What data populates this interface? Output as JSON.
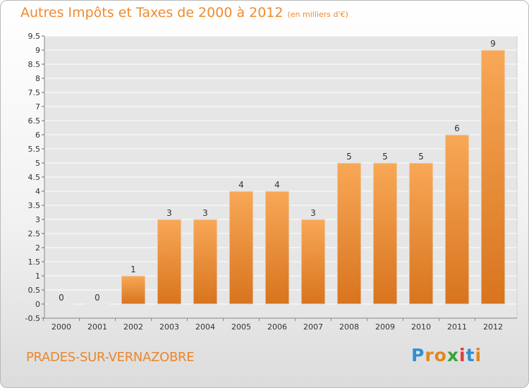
{
  "title": "Autres Impôts et Taxes de 2000 à 2012",
  "unit": "(en milliers d'€)",
  "commune": "PRADES-SUR-VERNAZOBRE",
  "logo": {
    "letters": [
      "P",
      "r",
      "o",
      "x",
      "i",
      "t",
      "i"
    ],
    "colors": [
      "#2f8fd6",
      "#e2861f",
      "#e2861f",
      "#3aa23a",
      "#e23a3a",
      "#2f8fd6",
      "#e2861f"
    ]
  },
  "colors": {
    "bar_top": "#f8a857",
    "bar_bottom": "#d8741e",
    "accent": "#f08a2f",
    "grid": "#ffffff"
  },
  "chart_data": {
    "type": "bar",
    "title": "Autres Impôts et Taxes de 2000 à 2012",
    "subtitle": "(en milliers d'€)",
    "categories": [
      "2000",
      "2001",
      "2002",
      "2003",
      "2004",
      "2005",
      "2006",
      "2007",
      "2008",
      "2009",
      "2010",
      "2011",
      "2012"
    ],
    "values": [
      0,
      0,
      1,
      3,
      3,
      4,
      4,
      3,
      5,
      5,
      5,
      6,
      9
    ],
    "data_labels": [
      "0",
      "0",
      "1",
      "3",
      "3",
      "4",
      "4",
      "3",
      "5",
      "5",
      "5",
      "6",
      "9"
    ],
    "y_ticks": [
      "-0.5",
      "0",
      "0.5",
      "1",
      "1.5",
      "2",
      "2.5",
      "3",
      "3.5",
      "4",
      "4.5",
      "5",
      "5.5",
      "6",
      "6.5",
      "7",
      "7.5",
      "8",
      "8.5",
      "9",
      "9.5"
    ],
    "ylim": [
      -0.5,
      9.5
    ],
    "grid": true
  }
}
